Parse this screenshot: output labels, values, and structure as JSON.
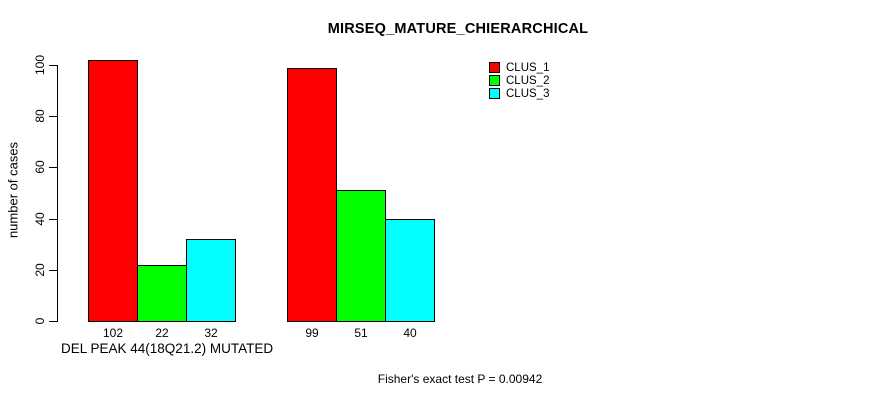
{
  "chart_data": {
    "type": "bar",
    "title": "MIRSEQ_MATURE_CHIERARCHICAL",
    "ylabel": "number of cases",
    "xlabel": "",
    "categories": [
      "DEL PEAK 44(18Q21.2) MUTATED",
      ""
    ],
    "series": [
      {
        "name": "CLUS_1",
        "color": "#ff0000",
        "values": [
          102,
          99
        ]
      },
      {
        "name": "CLUS_2",
        "color": "#00ff00",
        "values": [
          22,
          51
        ]
      },
      {
        "name": "CLUS_3",
        "color": "#00ffff",
        "values": [
          32,
          40
        ]
      }
    ],
    "bar_value_labels": [
      [
        "102",
        "99"
      ],
      [
        "22",
        "51"
      ],
      [
        "32",
        "40"
      ]
    ],
    "yticks": [
      0,
      20,
      40,
      60,
      80,
      100
    ],
    "ylim": [
      0,
      100
    ],
    "grid": false,
    "legend_position": "top-right",
    "legend_entries": [
      "CLUS_1",
      "CLUS_2",
      "CLUS_3"
    ],
    "annotation": "Fisher's exact test P = 0.00942"
  }
}
